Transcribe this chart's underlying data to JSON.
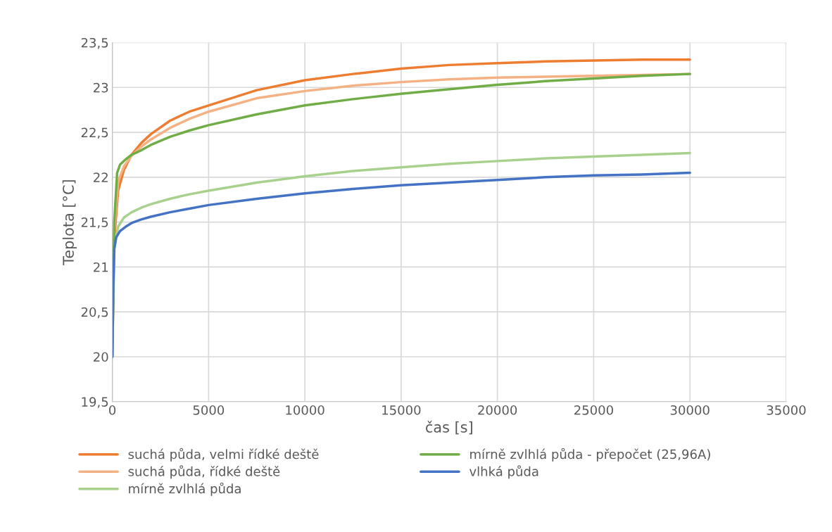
{
  "chart_data": {
    "type": "line",
    "xlabel": "čas [s]",
    "ylabel": "Teplota [°C]",
    "xlim": [
      0,
      35000
    ],
    "xticks": [
      0,
      5000,
      10000,
      15000,
      20000,
      25000,
      30000,
      35000
    ],
    "ylim": [
      19.5,
      23.5
    ],
    "yticks": [
      {
        "value": 19.5,
        "label": "19,5"
      },
      20,
      {
        "value": 20.5,
        "label": "20,5"
      },
      21,
      {
        "value": 21.5,
        "label": "21,5"
      },
      22,
      {
        "value": 22.5,
        "label": "22,5"
      },
      23,
      {
        "value": 23.5,
        "label": "23,5"
      }
    ],
    "grid": true,
    "legend": "bottom",
    "marker": "none",
    "line_style": "solid",
    "series": [
      {
        "name": "suchá půda, velmi řídké deště",
        "color": "#ed7d31",
        "x": [
          0,
          100,
          300,
          600,
          1000,
          1500,
          2000,
          3000,
          4000,
          5000,
          7500,
          10000,
          12500,
          15000,
          17500,
          20000,
          22500,
          25000,
          27500,
          30000
        ],
        "values": [
          20,
          21.3,
          21.85,
          22.08,
          22.25,
          22.38,
          22.48,
          22.63,
          22.73,
          22.8,
          22.97,
          23.08,
          23.15,
          23.21,
          23.25,
          23.27,
          23.29,
          23.3,
          23.31,
          23.31
        ]
      },
      {
        "name": "suchá půda, řídké deště",
        "color": "#f4b183",
        "x": [
          0,
          100,
          300,
          600,
          1000,
          1500,
          2000,
          3000,
          4000,
          5000,
          7500,
          10000,
          12500,
          15000,
          17500,
          20000,
          25000,
          30000
        ],
        "values": [
          20,
          21.4,
          21.95,
          22.12,
          22.24,
          22.34,
          22.42,
          22.55,
          22.65,
          22.73,
          22.88,
          22.96,
          23.02,
          23.06,
          23.09,
          23.11,
          23.13,
          23.15
        ]
      },
      {
        "name": "mírně zvlhlá půda",
        "color": "#a9d18e",
        "x": [
          0,
          100,
          300,
          600,
          1000,
          1500,
          2000,
          3000,
          4000,
          5000,
          7500,
          10000,
          12500,
          15000,
          17500,
          20000,
          22500,
          25000,
          27500,
          30000
        ],
        "values": [
          20,
          21.2,
          21.45,
          21.55,
          21.61,
          21.66,
          21.7,
          21.76,
          21.81,
          21.85,
          21.94,
          22.01,
          22.07,
          22.11,
          22.15,
          22.18,
          22.21,
          22.23,
          22.25,
          22.27
        ]
      },
      {
        "name": "mírně zvlhlá půda - přepočet (25,96A)",
        "color": "#70ad47",
        "x": [
          0,
          100,
          250,
          400,
          700,
          1000,
          1500,
          2000,
          3000,
          4000,
          5000,
          7500,
          10000,
          12500,
          15000,
          17500,
          20000,
          22500,
          25000,
          27500,
          30000
        ],
        "values": [
          20,
          21.5,
          22.05,
          22.14,
          22.2,
          22.25,
          22.3,
          22.36,
          22.45,
          22.52,
          22.58,
          22.7,
          22.8,
          22.87,
          22.93,
          22.98,
          23.03,
          23.07,
          23.1,
          23.13,
          23.15
        ]
      },
      {
        "name": "vlhká půda",
        "color": "#4472c4",
        "x": [
          0,
          50,
          100,
          200,
          400,
          700,
          1000,
          1500,
          2000,
          3000,
          4000,
          5000,
          7500,
          10000,
          12500,
          15000,
          17500,
          20000,
          22500,
          25000,
          27500,
          30000
        ],
        "values": [
          20,
          20.8,
          21.2,
          21.33,
          21.4,
          21.45,
          21.49,
          21.53,
          21.56,
          21.61,
          21.65,
          21.69,
          21.76,
          21.82,
          21.87,
          21.91,
          21.94,
          21.97,
          22.0,
          22.02,
          22.03,
          22.05
        ]
      }
    ]
  }
}
